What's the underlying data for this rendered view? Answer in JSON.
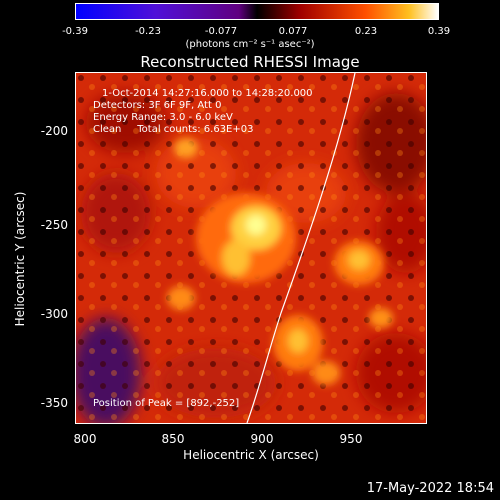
{
  "colorbar": {
    "ticks": [
      "-0.39",
      "-0.23",
      "-0.077",
      "0.077",
      "0.23",
      "0.39"
    ],
    "units": "(photons cm⁻² s⁻¹ asec⁻²)"
  },
  "title": "Reconstructed RHESSI Image",
  "info": {
    "time": "1-Oct-2014 14:27:16.000 to 14:28:20.000",
    "detectors": "Detectors: 3F 6F 9F, Att 0",
    "energy": "Energy Range: 3.0 - 6.0 keV",
    "clean": "Clean     Total counts: 6.63E+03",
    "peak": "Position of Peak = [892,-252]"
  },
  "axes": {
    "xlabel": "Heliocentric X (arcsec)",
    "ylabel": "Heliocentric Y (arcsec)",
    "xticks": [
      "800",
      "850",
      "900",
      "950"
    ],
    "yticks": [
      "-200",
      "-250",
      "-300",
      "-350"
    ]
  },
  "timestamp": "17-May-2022 18:54"
}
